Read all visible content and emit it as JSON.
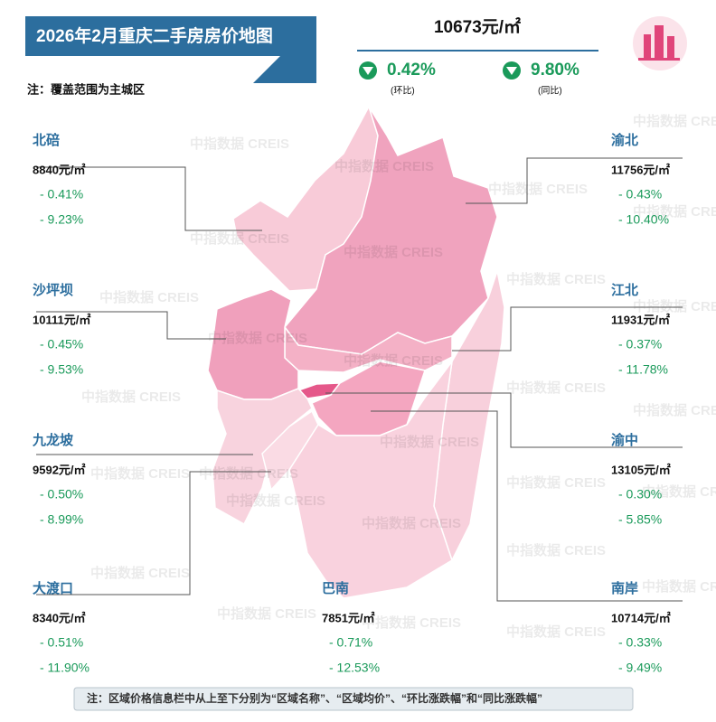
{
  "header": {
    "title": "2026年2月重庆二手房房价地图",
    "note": "注：覆盖范围为主城区"
  },
  "summary": {
    "price": "10673元/㎡",
    "mom": "0.42%",
    "mom_label": "(环比)",
    "yoy": "9.80%",
    "yoy_label": "(同比)"
  },
  "watermark": "中指数据 CREIS",
  "districts": [
    {
      "name": "北碚",
      "price": "8840元/㎡",
      "mom": "- 0.41%",
      "yoy": "- 9.23%"
    },
    {
      "name": "沙坪坝",
      "price": "10111元/㎡",
      "mom": "- 0.45%",
      "yoy": "- 9.53%"
    },
    {
      "name": "九龙坡",
      "price": "9592元/㎡",
      "mom": "- 0.50%",
      "yoy": "- 8.99%"
    },
    {
      "name": "大渡口",
      "price": "8340元/㎡",
      "mom": "- 0.51%",
      "yoy": "- 11.90%"
    },
    {
      "name": "巴南",
      "price": "7851元/㎡",
      "mom": "- 0.71%",
      "yoy": "- 12.53%"
    },
    {
      "name": "渝北",
      "price": "11756元/㎡",
      "mom": "- 0.43%",
      "yoy": "- 10.40%"
    },
    {
      "name": "江北",
      "price": "11931元/㎡",
      "mom": "- 0.37%",
      "yoy": "- 11.78%"
    },
    {
      "name": "渝中",
      "price": "13105元/㎡",
      "mom": "- 0.30%",
      "yoy": "- 5.85%"
    },
    {
      "name": "南岸",
      "price": "10714元/㎡",
      "mom": "- 0.33%",
      "yoy": "- 9.49%"
    }
  ],
  "footer": "注：区域价格信息栏中从上至下分别为“区域名称”、“区域均价”、“环比涨跌幅”和“同比涨跌幅”"
}
